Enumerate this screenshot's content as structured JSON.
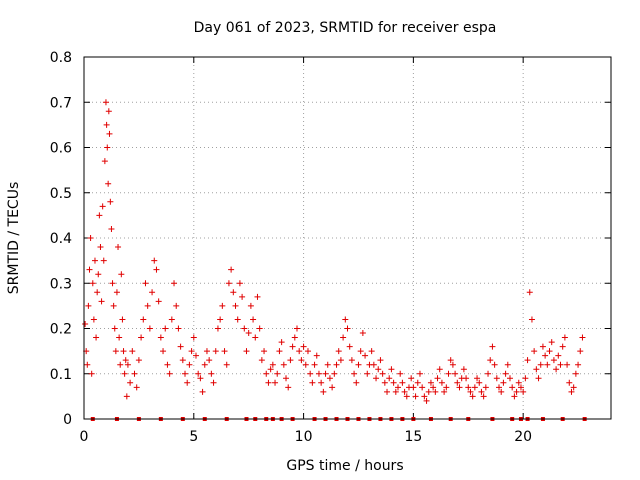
{
  "chart_data": {
    "type": "scatter",
    "title": "Day 061 of 2023, SRMTID for receiver espa",
    "xlabel": "GPS time / hours",
    "ylabel": "SRMTID / TECUs",
    "xlim": [
      0,
      24
    ],
    "ylim": [
      0,
      0.8
    ],
    "xticks": [
      0,
      5,
      10,
      15,
      20
    ],
    "xtick_labels": [
      "0",
      "5",
      "10",
      "15",
      "20"
    ],
    "yticks": [
      0,
      0.1,
      0.2,
      0.3,
      0.4,
      0.5,
      0.6,
      0.7,
      0.8
    ],
    "ytick_labels": [
      "0",
      "0.1",
      "0.2",
      "0.3",
      "0.4",
      "0.5",
      "0.6",
      "0.7",
      "0.8"
    ],
    "grid": true,
    "series": [
      {
        "name": "SRMTID",
        "color": "#e00000",
        "marker": "plus",
        "points": [
          [
            0.05,
            0.21
          ],
          [
            0.1,
            0.15
          ],
          [
            0.15,
            0.12
          ],
          [
            0.2,
            0.25
          ],
          [
            0.25,
            0.33
          ],
          [
            0.3,
            0.4
          ],
          [
            0.35,
            0.1
          ],
          [
            0.4,
            0.3
          ],
          [
            0.45,
            0.22
          ],
          [
            0.5,
            0.35
          ],
          [
            0.55,
            0.18
          ],
          [
            0.6,
            0.28
          ],
          [
            0.65,
            0.32
          ],
          [
            0.7,
            0.45
          ],
          [
            0.75,
            0.38
          ],
          [
            0.8,
            0.26
          ],
          [
            0.85,
            0.47
          ],
          [
            0.9,
            0.35
          ],
          [
            0.95,
            0.57
          ],
          [
            1.0,
            0.7
          ],
          [
            1.03,
            0.65
          ],
          [
            1.06,
            0.6
          ],
          [
            1.1,
            0.52
          ],
          [
            1.13,
            0.68
          ],
          [
            1.16,
            0.63
          ],
          [
            1.2,
            0.48
          ],
          [
            1.25,
            0.42
          ],
          [
            1.3,
            0.3
          ],
          [
            1.35,
            0.25
          ],
          [
            1.4,
            0.2
          ],
          [
            1.45,
            0.15
          ],
          [
            1.5,
            0.28
          ],
          [
            1.55,
            0.38
          ],
          [
            1.6,
            0.18
          ],
          [
            1.65,
            0.12
          ],
          [
            1.7,
            0.32
          ],
          [
            1.75,
            0.22
          ],
          [
            1.8,
            0.15
          ],
          [
            1.85,
            0.1
          ],
          [
            1.9,
            0.13
          ],
          [
            1.95,
            0.05
          ],
          [
            2.0,
            0.12
          ],
          [
            2.1,
            0.08
          ],
          [
            2.2,
            0.15
          ],
          [
            2.3,
            0.1
          ],
          [
            2.4,
            0.07
          ],
          [
            2.5,
            0.13
          ],
          [
            2.6,
            0.18
          ],
          [
            2.7,
            0.22
          ],
          [
            2.8,
            0.3
          ],
          [
            2.9,
            0.25
          ],
          [
            3.0,
            0.2
          ],
          [
            3.1,
            0.28
          ],
          [
            3.2,
            0.35
          ],
          [
            3.3,
            0.33
          ],
          [
            3.4,
            0.26
          ],
          [
            3.5,
            0.18
          ],
          [
            3.6,
            0.15
          ],
          [
            3.7,
            0.2
          ],
          [
            3.8,
            0.12
          ],
          [
            3.9,
            0.1
          ],
          [
            4.0,
            0.22
          ],
          [
            4.1,
            0.3
          ],
          [
            4.2,
            0.25
          ],
          [
            4.3,
            0.2
          ],
          [
            4.4,
            0.16
          ],
          [
            4.5,
            0.13
          ],
          [
            4.6,
            0.1
          ],
          [
            4.7,
            0.08
          ],
          [
            4.8,
            0.12
          ],
          [
            4.9,
            0.15
          ],
          [
            5.0,
            0.18
          ],
          [
            5.1,
            0.14
          ],
          [
            5.2,
            0.1
          ],
          [
            5.3,
            0.09
          ],
          [
            5.4,
            0.06
          ],
          [
            5.5,
            0.12
          ],
          [
            5.6,
            0.15
          ],
          [
            5.7,
            0.13
          ],
          [
            5.8,
            0.1
          ],
          [
            5.9,
            0.08
          ],
          [
            6.0,
            0.15
          ],
          [
            6.1,
            0.2
          ],
          [
            6.2,
            0.22
          ],
          [
            6.3,
            0.25
          ],
          [
            6.4,
            0.15
          ],
          [
            6.5,
            0.12
          ],
          [
            6.6,
            0.3
          ],
          [
            6.7,
            0.33
          ],
          [
            6.8,
            0.28
          ],
          [
            6.9,
            0.25
          ],
          [
            7.0,
            0.22
          ],
          [
            7.1,
            0.3
          ],
          [
            7.2,
            0.27
          ],
          [
            7.3,
            0.2
          ],
          [
            7.4,
            0.15
          ],
          [
            7.5,
            0.19
          ],
          [
            7.6,
            0.25
          ],
          [
            7.7,
            0.22
          ],
          [
            7.8,
            0.18
          ],
          [
            7.9,
            0.27
          ],
          [
            8.0,
            0.2
          ],
          [
            8.1,
            0.13
          ],
          [
            8.2,
            0.15
          ],
          [
            8.3,
            0.1
          ],
          [
            8.4,
            0.08
          ],
          [
            8.5,
            0.11
          ],
          [
            8.6,
            0.12
          ],
          [
            8.7,
            0.08
          ],
          [
            8.8,
            0.1
          ],
          [
            8.9,
            0.15
          ],
          [
            9.0,
            0.17
          ],
          [
            9.1,
            0.12
          ],
          [
            9.2,
            0.09
          ],
          [
            9.3,
            0.07
          ],
          [
            9.4,
            0.13
          ],
          [
            9.5,
            0.16
          ],
          [
            9.6,
            0.18
          ],
          [
            9.7,
            0.2
          ],
          [
            9.8,
            0.15
          ],
          [
            9.9,
            0.13
          ],
          [
            10.0,
            0.16
          ],
          [
            10.1,
            0.12
          ],
          [
            10.2,
            0.15
          ],
          [
            10.3,
            0.1
          ],
          [
            10.4,
            0.08
          ],
          [
            10.5,
            0.12
          ],
          [
            10.6,
            0.14
          ],
          [
            10.7,
            0.1
          ],
          [
            10.8,
            0.08
          ],
          [
            10.9,
            0.06
          ],
          [
            11.0,
            0.1
          ],
          [
            11.1,
            0.12
          ],
          [
            11.2,
            0.09
          ],
          [
            11.3,
            0.07
          ],
          [
            11.4,
            0.1
          ],
          [
            11.5,
            0.12
          ],
          [
            11.6,
            0.15
          ],
          [
            11.7,
            0.13
          ],
          [
            11.8,
            0.18
          ],
          [
            11.9,
            0.22
          ],
          [
            12.0,
            0.2
          ],
          [
            12.1,
            0.16
          ],
          [
            12.2,
            0.13
          ],
          [
            12.3,
            0.1
          ],
          [
            12.4,
            0.08
          ],
          [
            12.5,
            0.12
          ],
          [
            12.6,
            0.15
          ],
          [
            12.7,
            0.19
          ],
          [
            12.8,
            0.14
          ],
          [
            12.9,
            0.1
          ],
          [
            13.0,
            0.12
          ],
          [
            13.1,
            0.15
          ],
          [
            13.2,
            0.12
          ],
          [
            13.3,
            0.09
          ],
          [
            13.4,
            0.11
          ],
          [
            13.5,
            0.13
          ],
          [
            13.6,
            0.1
          ],
          [
            13.7,
            0.08
          ],
          [
            13.8,
            0.06
          ],
          [
            13.9,
            0.09
          ],
          [
            14.0,
            0.11
          ],
          [
            14.1,
            0.08
          ],
          [
            14.2,
            0.06
          ],
          [
            14.3,
            0.07
          ],
          [
            14.4,
            0.1
          ],
          [
            14.5,
            0.08
          ],
          [
            14.6,
            0.06
          ],
          [
            14.7,
            0.05
          ],
          [
            14.8,
            0.07
          ],
          [
            14.9,
            0.09
          ],
          [
            15.0,
            0.07
          ],
          [
            15.1,
            0.05
          ],
          [
            15.2,
            0.08
          ],
          [
            15.3,
            0.1
          ],
          [
            15.4,
            0.07
          ],
          [
            15.5,
            0.05
          ],
          [
            15.6,
            0.04
          ],
          [
            15.7,
            0.06
          ],
          [
            15.8,
            0.08
          ],
          [
            15.9,
            0.07
          ],
          [
            16.0,
            0.06
          ],
          [
            16.1,
            0.09
          ],
          [
            16.2,
            0.11
          ],
          [
            16.3,
            0.08
          ],
          [
            16.4,
            0.06
          ],
          [
            16.5,
            0.07
          ],
          [
            16.6,
            0.1
          ],
          [
            16.7,
            0.13
          ],
          [
            16.8,
            0.12
          ],
          [
            16.9,
            0.1
          ],
          [
            17.0,
            0.08
          ],
          [
            17.1,
            0.07
          ],
          [
            17.2,
            0.09
          ],
          [
            17.3,
            0.11
          ],
          [
            17.4,
            0.09
          ],
          [
            17.5,
            0.07
          ],
          [
            17.6,
            0.06
          ],
          [
            17.7,
            0.05
          ],
          [
            17.8,
            0.07
          ],
          [
            17.9,
            0.09
          ],
          [
            18.0,
            0.08
          ],
          [
            18.1,
            0.06
          ],
          [
            18.2,
            0.05
          ],
          [
            18.3,
            0.07
          ],
          [
            18.4,
            0.1
          ],
          [
            18.5,
            0.13
          ],
          [
            18.6,
            0.16
          ],
          [
            18.7,
            0.12
          ],
          [
            18.8,
            0.09
          ],
          [
            18.9,
            0.07
          ],
          [
            19.0,
            0.06
          ],
          [
            19.1,
            0.08
          ],
          [
            19.2,
            0.1
          ],
          [
            19.3,
            0.12
          ],
          [
            19.4,
            0.09
          ],
          [
            19.5,
            0.07
          ],
          [
            19.6,
            0.05
          ],
          [
            19.7,
            0.06
          ],
          [
            19.8,
            0.08
          ],
          [
            19.9,
            0.07
          ],
          [
            20.0,
            0.06
          ],
          [
            20.1,
            0.09
          ],
          [
            20.2,
            0.13
          ],
          [
            20.3,
            0.28
          ],
          [
            20.4,
            0.22
          ],
          [
            20.5,
            0.15
          ],
          [
            20.6,
            0.11
          ],
          [
            20.7,
            0.09
          ],
          [
            20.8,
            0.12
          ],
          [
            20.9,
            0.16
          ],
          [
            21.0,
            0.14
          ],
          [
            21.1,
            0.12
          ],
          [
            21.2,
            0.15
          ],
          [
            21.3,
            0.17
          ],
          [
            21.4,
            0.13
          ],
          [
            21.5,
            0.11
          ],
          [
            21.6,
            0.14
          ],
          [
            21.7,
            0.12
          ],
          [
            21.8,
            0.16
          ],
          [
            21.9,
            0.18
          ],
          [
            22.0,
            0.12
          ],
          [
            22.1,
            0.08
          ],
          [
            22.2,
            0.06
          ],
          [
            22.3,
            0.07
          ],
          [
            22.4,
            0.1
          ],
          [
            22.5,
            0.12
          ],
          [
            22.6,
            0.15
          ],
          [
            22.7,
            0.18
          ]
        ]
      }
    ],
    "baseline_markers": {
      "color": "#e00000",
      "y": 0,
      "x": [
        0.4,
        1.5,
        2.5,
        3.5,
        4.5,
        5.5,
        6.5,
        7.4,
        7.8,
        8.3,
        8.6,
        9.0,
        9.5,
        10.5,
        11.0,
        11.5,
        12.0,
        12.5,
        13.0,
        13.5,
        14.0,
        14.5,
        15.0,
        15.8,
        16.7,
        17.5,
        18.6,
        19.5,
        19.9,
        20.2,
        20.9,
        21.8,
        22.8
      ]
    }
  }
}
